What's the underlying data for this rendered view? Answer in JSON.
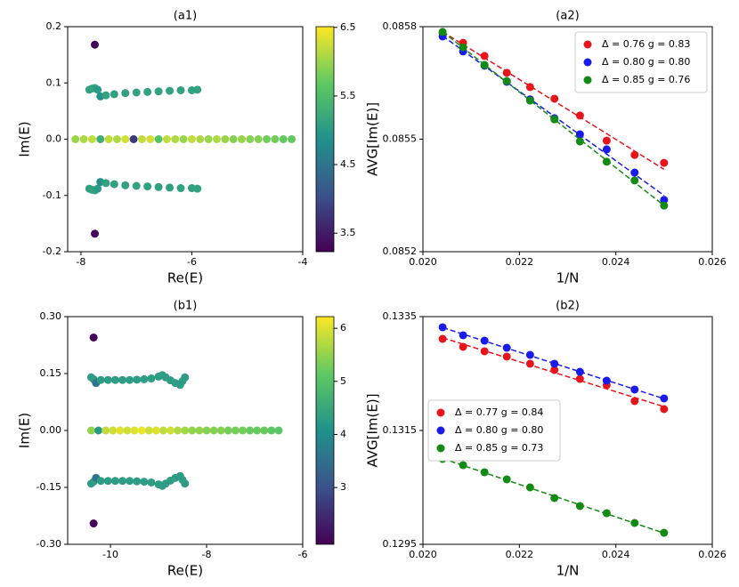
{
  "chart_data": [
    {
      "type": "scatter",
      "title": "(a1)",
      "xlabel": "Re(E)",
      "ylabel": "Im(E)",
      "colormap": "viridis",
      "xlim": [
        -8.24,
        -4
      ],
      "xticks": [
        -8,
        -6,
        -4
      ],
      "ylim": [
        -0.2,
        0.2
      ],
      "yticks": [
        {
          "value": -0.2,
          "label": "-0.2"
        },
        {
          "value": -0.1,
          "label": "-0.1"
        },
        {
          "value": 0,
          "label": "0.0"
        },
        {
          "value": 0.1,
          "label": "0.1"
        },
        {
          "value": 0.2,
          "label": "0.2"
        }
      ],
      "clim": [
        3.23,
        6.51
      ],
      "cticks": [
        3.5,
        4.5,
        5.5,
        6.5
      ],
      "series": [
        {
          "x": [
            -7.85,
            -7.8,
            -7.75,
            -7.7,
            -7.65,
            -7.55,
            -7.4,
            -7.2,
            -7.0,
            -6.8,
            -6.6,
            -6.4,
            -6.2,
            -6.0,
            -5.9
          ],
          "y": [
            0.088,
            0.09,
            0.091,
            0.088,
            0.076,
            0.078,
            0.08,
            0.082,
            0.083,
            0.084,
            0.085,
            0.086,
            0.087,
            0.087,
            0.088
          ],
          "c": [
            5.1,
            5.1,
            5.1,
            5.0,
            4.9,
            5.1,
            5.1,
            5.1,
            5.1,
            5.1,
            5.1,
            5.1,
            5.1,
            5.1,
            5.1
          ]
        },
        {
          "x": [
            -7.85,
            -7.8,
            -7.75,
            -7.7,
            -7.65,
            -7.55,
            -7.4,
            -7.2,
            -7.0,
            -6.8,
            -6.6,
            -6.4,
            -6.2,
            -6.0,
            -5.9
          ],
          "y": [
            -0.088,
            -0.09,
            -0.091,
            -0.088,
            -0.076,
            -0.078,
            -0.08,
            -0.082,
            -0.083,
            -0.084,
            -0.085,
            -0.086,
            -0.087,
            -0.087,
            -0.088
          ],
          "c": [
            5.1,
            5.1,
            5.1,
            5.0,
            4.9,
            5.1,
            5.1,
            5.1,
            5.1,
            5.1,
            5.1,
            5.1,
            5.1,
            5.1,
            5.1
          ]
        },
        {
          "x": [
            -8.1,
            -7.95,
            -7.8,
            -7.65,
            -7.5,
            -7.35,
            -7.2,
            -7.05,
            -6.9,
            -6.75,
            -6.6,
            -6.45,
            -6.3,
            -6.15,
            -6.0,
            -5.85,
            -5.7,
            -5.55,
            -5.4,
            -5.25,
            -5.1,
            -4.95,
            -4.8,
            -4.65,
            -4.5,
            -4.35,
            -4.2
          ],
          "y": [
            0,
            0,
            0,
            0,
            0,
            0,
            0,
            0,
            0,
            0,
            0,
            0,
            0,
            0,
            0,
            0,
            0,
            0,
            0,
            0,
            0,
            0,
            0,
            0,
            0,
            0,
            0
          ],
          "c": [
            6.0,
            6.1,
            6.2,
            5.3,
            6.2,
            6.1,
            6.3,
            3.8,
            6.2,
            6.3,
            5.6,
            6.2,
            6.1,
            6.0,
            6.2,
            6.1,
            6.0,
            6.1,
            6.0,
            5.9,
            6.0,
            5.9,
            5.9,
            5.8,
            5.8,
            5.7,
            5.7
          ]
        },
        {
          "x": [
            -7.75,
            -7.75
          ],
          "y": [
            0.168,
            -0.168
          ],
          "c": [
            3.3,
            3.3
          ]
        }
      ]
    },
    {
      "type": "scatter",
      "title": "(a2)",
      "xlabel": "1/N",
      "ylabel": "AVG[Im(E)]",
      "fit_line": "dashed",
      "legend": "upper right",
      "xlim": [
        0.02,
        0.026
      ],
      "xticks": [
        {
          "value": 0.02,
          "label": "0.020"
        },
        0.022,
        0.024,
        0.026
      ],
      "ylim": [
        0.0852,
        0.0858
      ],
      "yticks": [
        0.0852,
        0.0855,
        0.0858
      ],
      "x": [
        0.020408,
        0.020833,
        0.021277,
        0.021739,
        0.022222,
        0.022727,
        0.023256,
        0.02381,
        0.02439,
        0.025
      ],
      "series": [
        {
          "name": "Δ = 0.76  g = 0.83",
          "color": "#e8141c",
          "values": [
            0.085783,
            0.085757,
            0.085722,
            0.085677,
            0.085639,
            0.085608,
            0.085563,
            0.085496,
            0.085458,
            0.085437
          ]
        },
        {
          "name": "Δ = 0.80  g = 0.80",
          "color": "#1a1aeb",
          "values": [
            0.085774,
            0.085734,
            0.085696,
            0.085653,
            0.085606,
            0.085556,
            0.085513,
            0.085473,
            0.085411,
            0.085338
          ]
        },
        {
          "name": "Δ = 0.85  g = 0.76",
          "color": "#138a13",
          "values": [
            0.085786,
            0.085745,
            0.085698,
            0.085655,
            0.085603,
            0.085553,
            0.085494,
            0.08544,
            0.08539,
            0.085323
          ]
        }
      ]
    },
    {
      "type": "scatter",
      "title": "(b1)",
      "xlabel": "Re(E)",
      "ylabel": "Im(E)",
      "colormap": "viridis",
      "xlim": [
        -10.89,
        -6
      ],
      "xticks": [
        -10,
        -8,
        -6
      ],
      "ylim": [
        -0.3,
        0.3
      ],
      "yticks": [
        {
          "value": -0.3,
          "label": "-0.30"
        },
        {
          "value": -0.15,
          "label": "-0.15"
        },
        {
          "value": 0,
          "label": "0.00"
        },
        {
          "value": 0.15,
          "label": "0.15"
        },
        {
          "value": 0.3,
          "label": "0.30"
        }
      ],
      "clim": [
        1.93,
        6.22
      ],
      "cticks": [
        3,
        4,
        5,
        6
      ],
      "series": [
        {
          "x": [
            -10.4,
            -10.35,
            -10.3,
            -10.2,
            -10.05,
            -9.9,
            -9.75,
            -9.6,
            -9.45,
            -9.3,
            -9.15,
            -9.0,
            -8.92,
            -8.85,
            -8.75,
            -8.65,
            -8.55,
            -8.5,
            -8.45
          ],
          "y": [
            0.14,
            0.135,
            0.125,
            0.133,
            0.133,
            0.133,
            0.133,
            0.133,
            0.134,
            0.135,
            0.137,
            0.142,
            0.146,
            0.14,
            0.132,
            0.125,
            0.12,
            0.13,
            0.14
          ],
          "c": [
            4.3,
            4.3,
            3.6,
            4.3,
            4.3,
            4.3,
            4.3,
            4.3,
            4.3,
            4.3,
            4.3,
            4.3,
            4.3,
            4.3,
            4.3,
            4.3,
            4.3,
            4.3,
            4.3
          ]
        },
        {
          "x": [
            -10.4,
            -10.35,
            -10.3,
            -10.2,
            -10.05,
            -9.9,
            -9.75,
            -9.6,
            -9.45,
            -9.3,
            -9.15,
            -9.0,
            -8.92,
            -8.85,
            -8.75,
            -8.65,
            -8.55,
            -8.5,
            -8.45
          ],
          "y": [
            -0.14,
            -0.135,
            -0.125,
            -0.133,
            -0.133,
            -0.133,
            -0.133,
            -0.133,
            -0.134,
            -0.135,
            -0.137,
            -0.142,
            -0.146,
            -0.14,
            -0.132,
            -0.125,
            -0.12,
            -0.13,
            -0.14
          ],
          "c": [
            4.3,
            4.3,
            3.6,
            4.3,
            4.3,
            4.3,
            4.3,
            4.3,
            4.3,
            4.3,
            4.3,
            4.3,
            4.3,
            4.3,
            4.3,
            4.3,
            4.3,
            4.3,
            4.3
          ]
        },
        {
          "x": [
            -10.4,
            -10.25,
            -10.1,
            -9.95,
            -9.8,
            -9.65,
            -9.5,
            -9.35,
            -9.2,
            -9.05,
            -8.9,
            -8.75,
            -8.6,
            -8.45,
            -8.3,
            -8.15,
            -8.0,
            -7.85,
            -7.7,
            -7.55,
            -7.4,
            -7.25,
            -7.1,
            -6.95,
            -6.8,
            -6.65,
            -6.5
          ],
          "y": [
            0,
            0,
            0,
            0,
            0,
            0,
            0,
            0,
            0,
            0,
            0,
            0,
            0,
            0,
            0,
            0,
            0,
            0,
            0,
            0,
            0,
            0,
            0,
            0,
            0,
            0,
            0
          ],
          "c": [
            5.5,
            4.2,
            5.8,
            5.9,
            6.0,
            5.9,
            6.0,
            6.1,
            5.9,
            6.0,
            5.8,
            5.9,
            5.7,
            5.6,
            5.5,
            5.5,
            5.4,
            5.4,
            5.4,
            5.3,
            5.3,
            5.3,
            5.2,
            5.2,
            5.2,
            5.1,
            5.1
          ]
        },
        {
          "x": [
            -10.35,
            -10.35
          ],
          "y": [
            0.245,
            -0.245
          ],
          "c": [
            2.0,
            2.0
          ]
        }
      ]
    },
    {
      "type": "scatter",
      "title": "(b2)",
      "xlabel": "1/N",
      "ylabel": "AVG[Im(E)]",
      "fit_line": "dashed",
      "legend": "center left",
      "xlim": [
        0.02,
        0.026
      ],
      "xticks": [
        {
          "value": 0.02,
          "label": "0.020"
        },
        0.022,
        0.024,
        0.026
      ],
      "ylim": [
        0.1295,
        0.1335
      ],
      "yticks": [
        0.1295,
        0.1315,
        0.1335
      ],
      "x": [
        0.020408,
        0.020833,
        0.021277,
        0.021739,
        0.022222,
        0.022727,
        0.023256,
        0.02381,
        0.02439,
        0.025
      ],
      "series": [
        {
          "name": "Δ = 0.77  g = 0.84",
          "color": "#e8141c",
          "values": [
            0.133109,
            0.132969,
            0.132891,
            0.132797,
            0.132672,
            0.132563,
            0.132406,
            0.132297,
            0.132016,
            0.131875
          ]
        },
        {
          "name": "Δ = 0.80  g = 0.80",
          "color": "#1a1aeb",
          "values": [
            0.133313,
            0.133172,
            0.133078,
            0.132953,
            0.132828,
            0.132672,
            0.132531,
            0.132375,
            0.132219,
            0.132063
          ]
        },
        {
          "name": "Δ = 0.85  g = 0.73",
          "color": "#138a13",
          "values": [
            0.131,
            0.130891,
            0.130766,
            0.130641,
            0.1305,
            0.130313,
            0.130172,
            0.130047,
            0.129875,
            0.129703
          ]
        }
      ]
    }
  ]
}
